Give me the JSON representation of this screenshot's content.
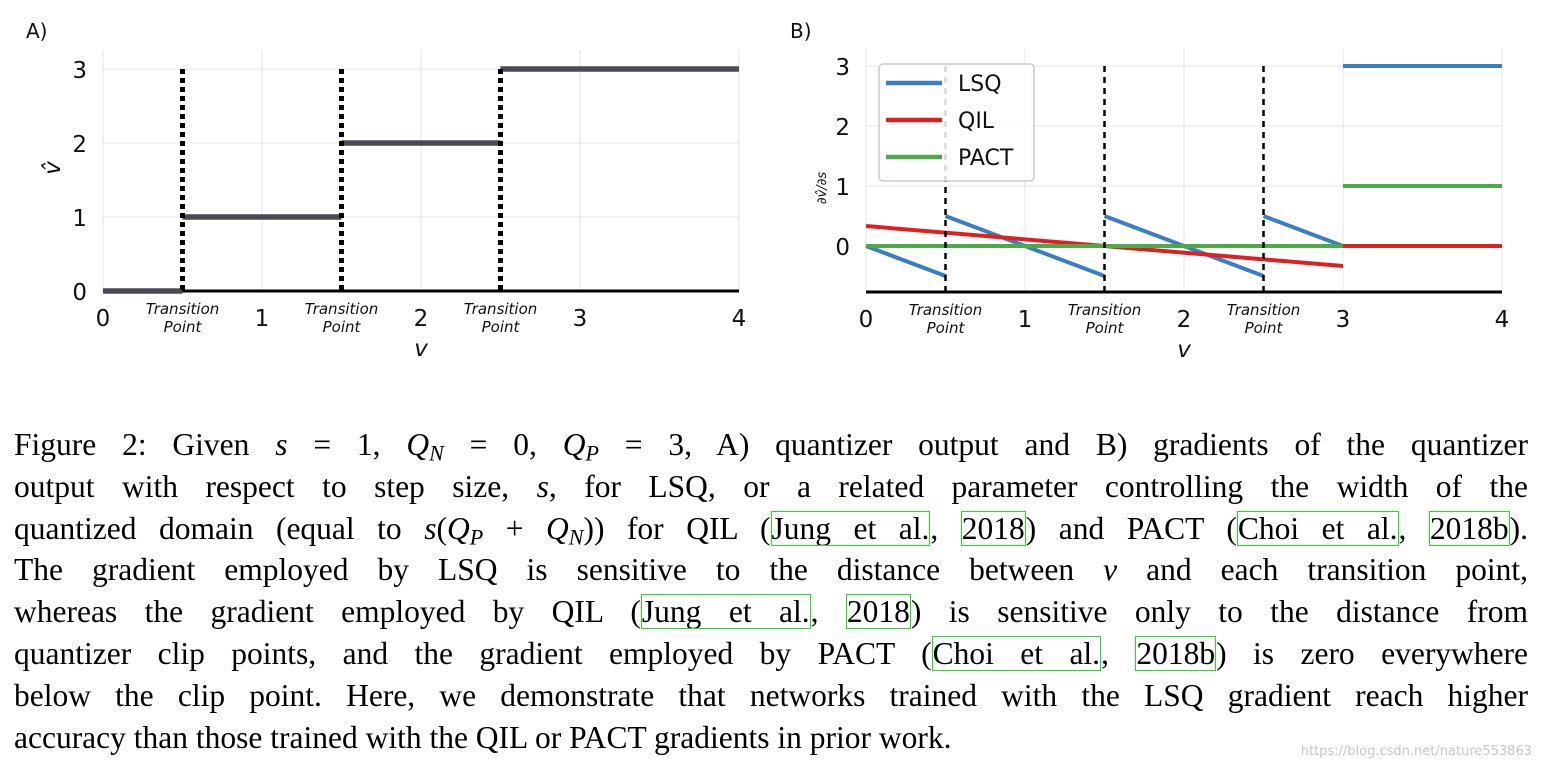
{
  "chart_data": [
    {
      "type": "line",
      "panel_label": "A)",
      "xlabel": "v",
      "ylabel": "v̂",
      "xlim": [
        0,
        4
      ],
      "ylim": [
        0,
        3
      ],
      "xticks": [
        "0",
        "1",
        "2",
        "3",
        "4"
      ],
      "yticks": [
        "0",
        "1",
        "2",
        "3"
      ],
      "grid": true,
      "transition_points": [
        0.5,
        1.5,
        2.5
      ],
      "transition_label": [
        "Transition",
        "Point"
      ],
      "series": [
        {
          "name": "quantizer output",
          "color": "#4a4a55",
          "segments": [
            [
              [
                0,
                0
              ],
              [
                0.5,
                0
              ]
            ],
            [
              [
                0.5,
                1
              ],
              [
                1.5,
                1
              ]
            ],
            [
              [
                1.5,
                2
              ],
              [
                2.5,
                2
              ]
            ],
            [
              [
                2.5,
                3
              ],
              [
                4,
                3
              ]
            ]
          ]
        }
      ]
    },
    {
      "type": "line",
      "panel_label": "B)",
      "xlabel": "v",
      "ylabel": "∂v̂/∂s",
      "xlim": [
        0,
        4
      ],
      "ylim": [
        -0.77,
        3.3
      ],
      "xticks": [
        "0",
        "1",
        "2",
        "3",
        "4"
      ],
      "yticks": [
        "0",
        "1",
        "2",
        "3"
      ],
      "grid": true,
      "legend": "top-left",
      "transition_points": [
        0.5,
        1.5,
        2.5
      ],
      "transition_label": [
        "Transition",
        "Point"
      ],
      "series": [
        {
          "name": "LSQ",
          "color": "#3a7fc0",
          "segments": [
            [
              [
                0,
                0
              ],
              [
                0.5,
                -0.5
              ]
            ],
            [
              [
                0.5,
                0.5
              ],
              [
                1.5,
                -0.5
              ]
            ],
            [
              [
                1.5,
                0.5
              ],
              [
                2.5,
                -0.5
              ]
            ],
            [
              [
                2.5,
                0.5
              ],
              [
                3,
                0
              ]
            ],
            [
              [
                3,
                3
              ],
              [
                4,
                3
              ]
            ]
          ]
        },
        {
          "name": "QIL",
          "color": "#e02020",
          "segments": [
            [
              [
                0,
                0.333
              ],
              [
                3,
                -0.333
              ]
            ],
            [
              [
                3,
                0
              ],
              [
                4,
                0
              ]
            ]
          ]
        },
        {
          "name": "PACT",
          "color": "#4caa48",
          "segments": [
            [
              [
                0,
                0
              ],
              [
                3,
                0
              ]
            ],
            [
              [
                3,
                1
              ],
              [
                4,
                1
              ]
            ]
          ]
        }
      ]
    }
  ],
  "caption": {
    "lines": [
      [
        {
          "k": "t",
          "v": "Figure 2: Given "
        },
        {
          "k": "m",
          "v": "s"
        },
        {
          "k": "t",
          "v": " = 1, "
        },
        {
          "k": "m",
          "v": "Q"
        },
        {
          "k": "s",
          "v": "N"
        },
        {
          "k": "t",
          "v": " = 0, "
        },
        {
          "k": "m",
          "v": "Q"
        },
        {
          "k": "s",
          "v": "P"
        },
        {
          "k": "t",
          "v": " = 3, A) quantizer output and B) gradients of the quantizer"
        }
      ],
      [
        {
          "k": "t",
          "v": "output with respect to step size, "
        },
        {
          "k": "m",
          "v": "s"
        },
        {
          "k": "t",
          "v": ", for LSQ, or a related parameter controlling the width of the"
        }
      ],
      [
        {
          "k": "t",
          "v": "quantized domain (equal to "
        },
        {
          "k": "m",
          "v": "s"
        },
        {
          "k": "t",
          "v": "("
        },
        {
          "k": "m",
          "v": "Q"
        },
        {
          "k": "s",
          "v": "P"
        },
        {
          "k": "t",
          "v": " + "
        },
        {
          "k": "m",
          "v": "Q"
        },
        {
          "k": "s",
          "v": "N"
        },
        {
          "k": "t",
          "v": ")) for QIL ("
        },
        {
          "k": "c",
          "v": "Jung et al."
        },
        {
          "k": "t",
          "v": ", "
        },
        {
          "k": "c",
          "v": "2018"
        },
        {
          "k": "t",
          "v": ") and PACT ("
        },
        {
          "k": "c",
          "v": "Choi et al."
        },
        {
          "k": "t",
          "v": ", "
        },
        {
          "k": "c",
          "v": "2018b"
        },
        {
          "k": "t",
          "v": ")."
        }
      ],
      [
        {
          "k": "t",
          "v": "The gradient employed by LSQ is sensitive to the distance between "
        },
        {
          "k": "m",
          "v": "v"
        },
        {
          "k": "t",
          "v": " and each transition point,"
        }
      ],
      [
        {
          "k": "t",
          "v": "whereas the gradient employed by QIL ("
        },
        {
          "k": "c",
          "v": "Jung et al."
        },
        {
          "k": "t",
          "v": ", "
        },
        {
          "k": "c",
          "v": "2018"
        },
        {
          "k": "t",
          "v": ") is sensitive only to the distance from"
        }
      ],
      [
        {
          "k": "t",
          "v": "quantizer clip points, and the gradient employed by PACT ("
        },
        {
          "k": "c",
          "v": "Choi et al."
        },
        {
          "k": "t",
          "v": ", "
        },
        {
          "k": "c",
          "v": "2018b"
        },
        {
          "k": "t",
          "v": ") is zero everywhere"
        }
      ],
      [
        {
          "k": "t",
          "v": "below the clip point. Here, we demonstrate that networks trained with the LSQ gradient reach higher"
        }
      ],
      [
        {
          "k": "t",
          "v": "accuracy than those trained with the QIL or PACT gradients in prior work."
        }
      ]
    ]
  },
  "watermark": "https://blog.csdn.net/nature553863"
}
